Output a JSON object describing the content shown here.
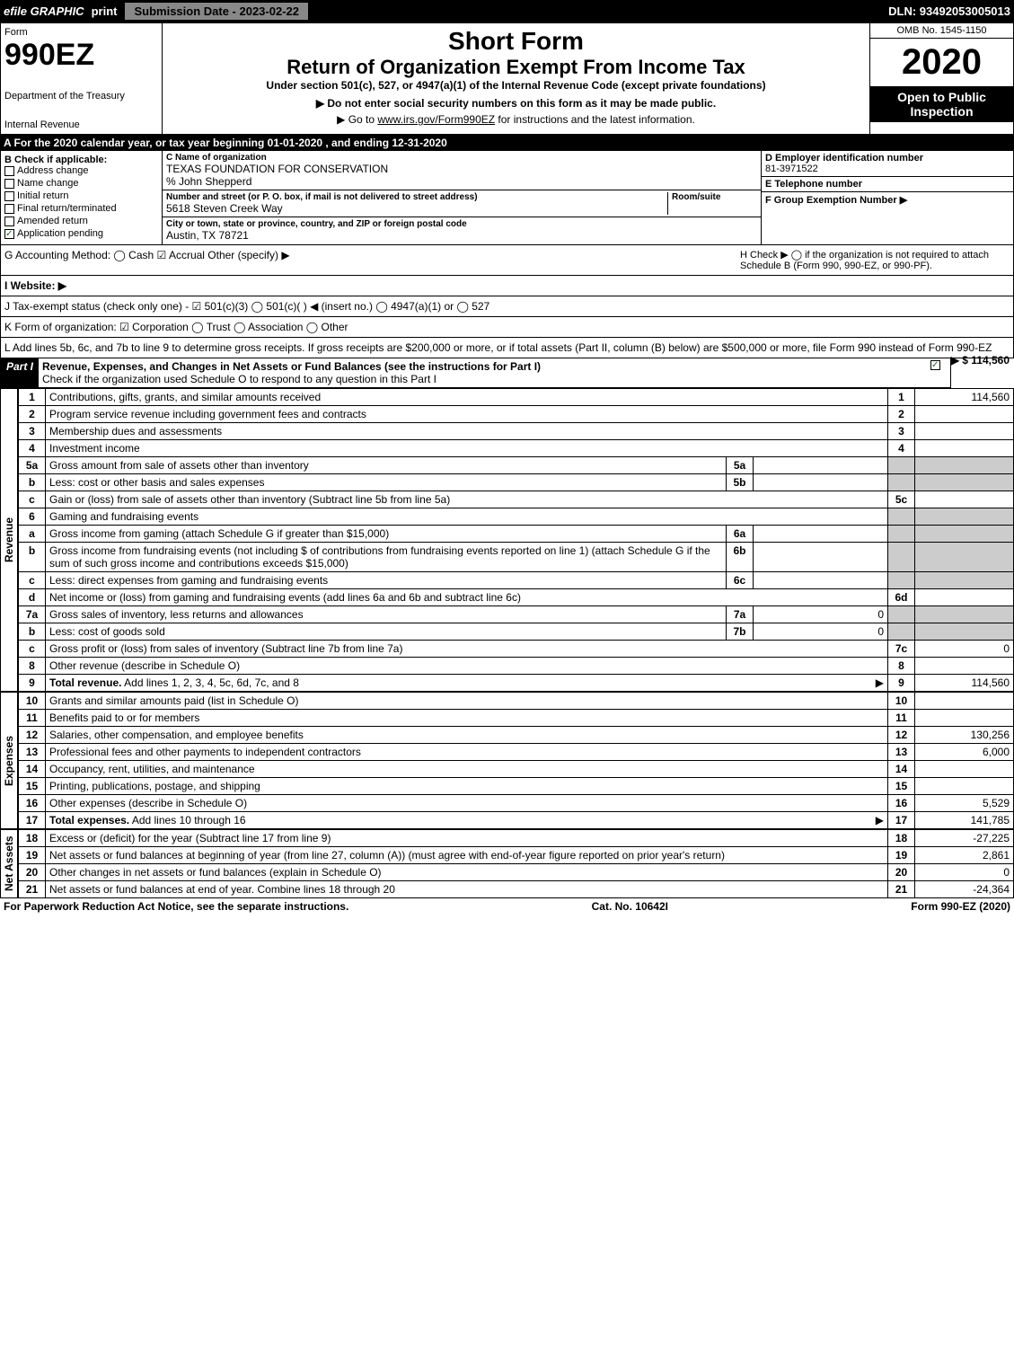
{
  "topbar": {
    "efile": "efile GRAPHIC",
    "print": "print",
    "subdate": "Submission Date - 2023-02-22",
    "dln": "DLN: 93492053005013"
  },
  "header": {
    "form_label": "Form",
    "form_num": "990EZ",
    "dept1": "Department of the Treasury",
    "dept2": "Internal Revenue",
    "short": "Short Form",
    "title": "Return of Organization Exempt From Income Tax",
    "subtitle": "Under section 501(c), 527, or 4947(a)(1) of the Internal Revenue Code (except private foundations)",
    "note": "▶ Do not enter social security numbers on this form as it may be made public.",
    "link_prefix": "▶ Go to ",
    "link_url": "www.irs.gov/Form990EZ",
    "link_suffix": " for instructions and the latest information.",
    "omb": "OMB No. 1545-1150",
    "year": "2020",
    "open": "Open to Public Inspection"
  },
  "bar_a": "A For the 2020 calendar year, or tax year beginning 01-01-2020 , and ending 12-31-2020",
  "box_b": {
    "title": "B  Check if applicable:",
    "items": [
      {
        "label": "Address change",
        "checked": false
      },
      {
        "label": "Name change",
        "checked": false
      },
      {
        "label": "Initial return",
        "checked": false
      },
      {
        "label": "Final return/terminated",
        "checked": false
      },
      {
        "label": "Amended return",
        "checked": false
      },
      {
        "label": "Application pending",
        "checked": true
      }
    ]
  },
  "box_c": {
    "label_name": "C Name of organization",
    "name": "TEXAS FOUNDATION FOR CONSERVATION",
    "care_of": "% John Shepperd",
    "label_street": "Number and street (or P. O. box, if mail is not delivered to street address)",
    "room_label": "Room/suite",
    "street": "5618 Steven Creek Way",
    "label_city": "City or town, state or province, country, and ZIP or foreign postal code",
    "city": "Austin, TX  78721"
  },
  "box_d": {
    "label": "D Employer identification number",
    "value": "81-3971522"
  },
  "box_e": {
    "label": "E Telephone number",
    "value": ""
  },
  "box_f": {
    "label": "F Group Exemption Number  ▶",
    "value": ""
  },
  "line_g": "G Accounting Method:   ◯ Cash  ☑ Accrual  Other (specify) ▶",
  "line_h": "H   Check ▶  ◯  if the organization is not required to attach Schedule B (Form 990, 990-EZ, or 990-PF).",
  "line_i": "I Website: ▶",
  "line_j": "J Tax-exempt status (check only one) -  ☑ 501(c)(3) ◯ 501(c)(  ) ◀ (insert no.) ◯ 4947(a)(1) or ◯ 527",
  "line_k": "K Form of organization:  ☑ Corporation  ◯ Trust  ◯ Association  ◯ Other",
  "line_l": "L Add lines 5b, 6c, and 7b to line 9 to determine gross receipts. If gross receipts are $200,000 or more, or if total assets (Part II, column (B) below) are $500,000 or more, file Form 990 instead of Form 990-EZ",
  "line_l_amt": "▶ $ 114,560",
  "part1": {
    "label": "Part I",
    "title": "Revenue, Expenses, and Changes in Net Assets or Fund Balances (see the instructions for Part I)",
    "check_note": "Check if the organization used Schedule O to respond to any question in this Part I",
    "checked": true
  },
  "sections": {
    "revenue": "Revenue",
    "expenses": "Expenses",
    "netassets": "Net Assets"
  },
  "rows": [
    {
      "n": "1",
      "desc": "Contributions, gifts, grants, and similar amounts received",
      "rn": "1",
      "amt": "114,560"
    },
    {
      "n": "2",
      "desc": "Program service revenue including government fees and contracts",
      "rn": "2",
      "amt": ""
    },
    {
      "n": "3",
      "desc": "Membership dues and assessments",
      "rn": "3",
      "amt": ""
    },
    {
      "n": "4",
      "desc": "Investment income",
      "rn": "4",
      "amt": ""
    },
    {
      "n": "5a",
      "desc": "Gross amount from sale of assets other than inventory",
      "in": "5a",
      "inamt": "",
      "shade": true
    },
    {
      "n": "b",
      "desc": "Less: cost or other basis and sales expenses",
      "in": "5b",
      "inamt": "",
      "shade": true
    },
    {
      "n": "c",
      "desc": "Gain or (loss) from sale of assets other than inventory (Subtract line 5b from line 5a)",
      "rn": "5c",
      "amt": ""
    },
    {
      "n": "6",
      "desc": "Gaming and fundraising events",
      "shade": true
    },
    {
      "n": "a",
      "desc": "Gross income from gaming (attach Schedule G if greater than $15,000)",
      "in": "6a",
      "inamt": "",
      "shade": true
    },
    {
      "n": "b",
      "desc": "Gross income from fundraising events (not including $                        of contributions from fundraising events reported on line 1) (attach Schedule G if the sum of such gross income and contributions exceeds $15,000)",
      "in": "6b",
      "inamt": "",
      "shade": true
    },
    {
      "n": "c",
      "desc": "Less: direct expenses from gaming and fundraising events",
      "in": "6c",
      "inamt": "",
      "shade": true
    },
    {
      "n": "d",
      "desc": "Net income or (loss) from gaming and fundraising events (add lines 6a and 6b and subtract line 6c)",
      "rn": "6d",
      "amt": ""
    },
    {
      "n": "7a",
      "desc": "Gross sales of inventory, less returns and allowances",
      "in": "7a",
      "inamt": "0",
      "shade": true
    },
    {
      "n": "b",
      "desc": "Less: cost of goods sold",
      "in": "7b",
      "inamt": "0",
      "shade": true
    },
    {
      "n": "c",
      "desc": "Gross profit or (loss) from sales of inventory (Subtract line 7b from line 7a)",
      "rn": "7c",
      "amt": "0"
    },
    {
      "n": "8",
      "desc": "Other revenue (describe in Schedule O)",
      "rn": "8",
      "amt": ""
    },
    {
      "n": "9",
      "desc": "Total revenue. Add lines 1, 2, 3, 4, 5c, 6d, 7c, and 8",
      "rn": "9",
      "amt": "114,560",
      "bold": true,
      "arrow": true
    }
  ],
  "exp_rows": [
    {
      "n": "10",
      "desc": "Grants and similar amounts paid (list in Schedule O)",
      "rn": "10",
      "amt": ""
    },
    {
      "n": "11",
      "desc": "Benefits paid to or for members",
      "rn": "11",
      "amt": ""
    },
    {
      "n": "12",
      "desc": "Salaries, other compensation, and employee benefits",
      "rn": "12",
      "amt": "130,256"
    },
    {
      "n": "13",
      "desc": "Professional fees and other payments to independent contractors",
      "rn": "13",
      "amt": "6,000"
    },
    {
      "n": "14",
      "desc": "Occupancy, rent, utilities, and maintenance",
      "rn": "14",
      "amt": ""
    },
    {
      "n": "15",
      "desc": "Printing, publications, postage, and shipping",
      "rn": "15",
      "amt": ""
    },
    {
      "n": "16",
      "desc": "Other expenses (describe in Schedule O)",
      "rn": "16",
      "amt": "5,529"
    },
    {
      "n": "17",
      "desc": "Total expenses. Add lines 10 through 16",
      "rn": "17",
      "amt": "141,785",
      "bold": true,
      "arrow": true
    }
  ],
  "na_rows": [
    {
      "n": "18",
      "desc": "Excess or (deficit) for the year (Subtract line 17 from line 9)",
      "rn": "18",
      "amt": "-27,225"
    },
    {
      "n": "19",
      "desc": "Net assets or fund balances at beginning of year (from line 27, column (A)) (must agree with end-of-year figure reported on prior year's return)",
      "rn": "19",
      "amt": "2,861"
    },
    {
      "n": "20",
      "desc": "Other changes in net assets or fund balances (explain in Schedule O)",
      "rn": "20",
      "amt": "0"
    },
    {
      "n": "21",
      "desc": "Net assets or fund balances at end of year. Combine lines 18 through 20",
      "rn": "21",
      "amt": "-24,364"
    }
  ],
  "footer": {
    "left": "For Paperwork Reduction Act Notice, see the separate instructions.",
    "mid": "Cat. No. 10642I",
    "right": "Form 990-EZ (2020)"
  }
}
